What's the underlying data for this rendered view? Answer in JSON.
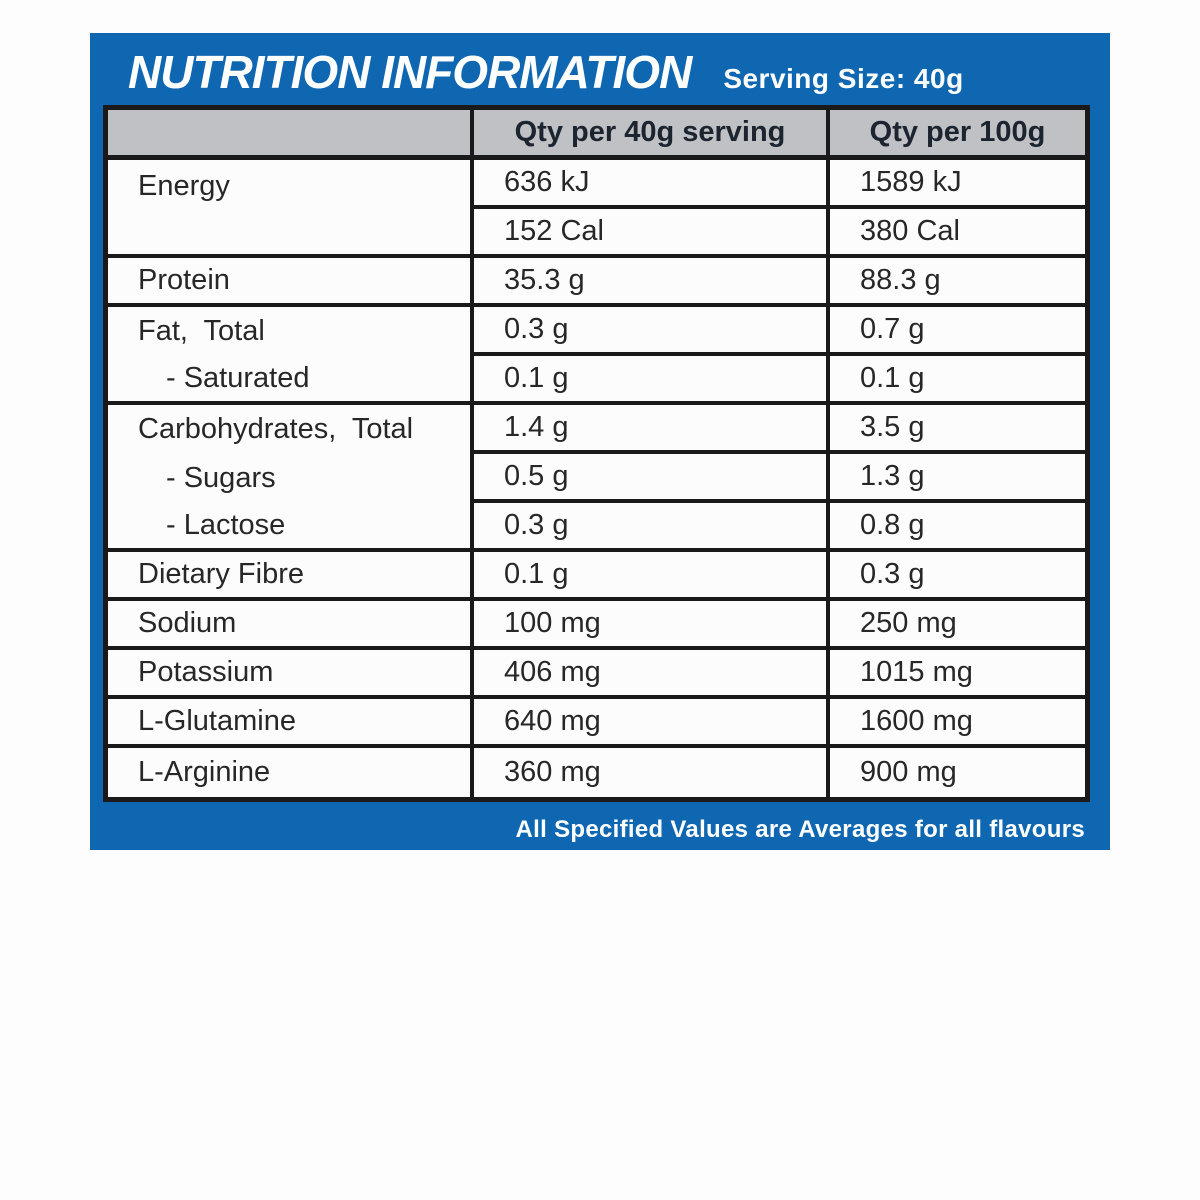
{
  "panel": {
    "title": "NUTRITION INFORMATION",
    "serving_size": "Serving Size: 40g",
    "footer": "All Specified Values are Averages for all flavours"
  },
  "colors": {
    "panel_blue": "#0f67b1",
    "header_gray": "#bfc1c4",
    "table_border": "#1a1a1a",
    "text_dark": "#272727",
    "text_white": "#ffffff"
  },
  "table": {
    "columns": [
      "",
      "Qty per 40g serving",
      "Qty per 100g"
    ],
    "rows": [
      {
        "label": "Energy",
        "per_serving": "636 kJ",
        "per_100g": "1589 kJ"
      },
      {
        "label": "",
        "per_serving": "152 Cal",
        "per_100g": "380 Cal"
      },
      {
        "label": "Protein",
        "per_serving": "35.3 g",
        "per_100g": "88.3 g"
      },
      {
        "label": "Fat,  Total",
        "per_serving": "0.3 g",
        "per_100g": "0.7 g"
      },
      {
        "label": "- Saturated",
        "per_serving": "0.1 g",
        "per_100g": "0.1 g"
      },
      {
        "label": "Carbohydrates,  Total",
        "per_serving": "1.4 g",
        "per_100g": "3.5 g"
      },
      {
        "label": "- Sugars",
        "per_serving": "0.5 g",
        "per_100g": "1.3 g"
      },
      {
        "label": "- Lactose",
        "per_serving": "0.3 g",
        "per_100g": "0.8 g"
      },
      {
        "label": "Dietary Fibre",
        "per_serving": "0.1 g",
        "per_100g": "0.3 g"
      },
      {
        "label": "Sodium",
        "per_serving": "100 mg",
        "per_100g": "250 mg"
      },
      {
        "label": "Potassium",
        "per_serving": "406 mg",
        "per_100g": "1015 mg"
      },
      {
        "label": "L-Glutamine",
        "per_serving": "640 mg",
        "per_100g": "1600 mg"
      },
      {
        "label": "L-Arginine",
        "per_serving": "360 mg",
        "per_100g": "900 mg"
      }
    ]
  }
}
